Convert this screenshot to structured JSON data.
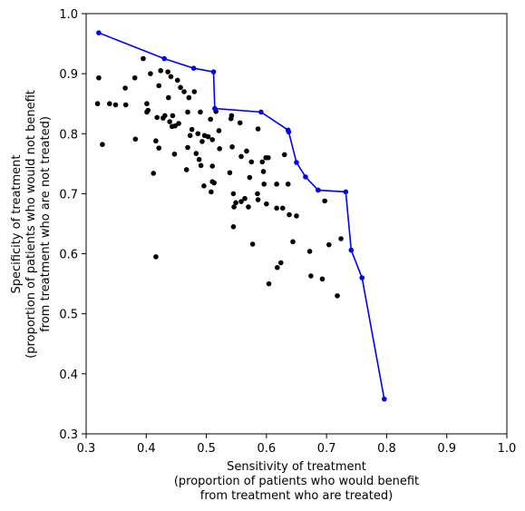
{
  "chart_data": {
    "type": "scatter",
    "title": "",
    "xlabel": [
      "Sensitivity of treatment",
      "(proportion of patients who would benefit",
      "from treatment who are treated)"
    ],
    "ylabel": [
      "Specificity of treatment",
      "(proportion of patients who would not benefit",
      "from treatment who are not treated)"
    ],
    "xlim": [
      0.3,
      1.0
    ],
    "ylim": [
      0.3,
      1.0
    ],
    "xticks": [
      "0.3",
      "0.4",
      "0.5",
      "0.6",
      "0.7",
      "0.8",
      "0.9",
      "1.0"
    ],
    "yticks": [
      "0.3",
      "0.4",
      "0.5",
      "0.6",
      "0.7",
      "0.8",
      "0.9",
      "1.0"
    ],
    "grid": false,
    "legend": "none",
    "series": [
      {
        "kind": "scatter",
        "color": "#000000",
        "points": [
          [
            0.321,
            0.893
          ],
          [
            0.319,
            0.85
          ],
          [
            0.327,
            0.782
          ],
          [
            0.339,
            0.85
          ],
          [
            0.349,
            0.848
          ],
          [
            0.365,
            0.876
          ],
          [
            0.366,
            0.848
          ],
          [
            0.381,
            0.893
          ],
          [
            0.382,
            0.791
          ],
          [
            0.395,
            0.925
          ],
          [
            0.401,
            0.85
          ],
          [
            0.401,
            0.836
          ],
          [
            0.403,
            0.839
          ],
          [
            0.407,
            0.9
          ],
          [
            0.412,
            0.734
          ],
          [
            0.416,
            0.788
          ],
          [
            0.418,
            0.827
          ],
          [
            0.416,
            0.595
          ],
          [
            0.421,
            0.88
          ],
          [
            0.421,
            0.776
          ],
          [
            0.424,
            0.905
          ],
          [
            0.428,
            0.826
          ],
          [
            0.431,
            0.83
          ],
          [
            0.436,
            0.903
          ],
          [
            0.437,
            0.86
          ],
          [
            0.439,
            0.82
          ],
          [
            0.441,
            0.895
          ],
          [
            0.444,
            0.83
          ],
          [
            0.443,
            0.812
          ],
          [
            0.447,
            0.766
          ],
          [
            0.448,
            0.813
          ],
          [
            0.452,
            0.889
          ],
          [
            0.454,
            0.817
          ],
          [
            0.457,
            0.877
          ],
          [
            0.463,
            0.87
          ],
          [
            0.467,
            0.74
          ],
          [
            0.469,
            0.777
          ],
          [
            0.469,
            0.836
          ],
          [
            0.471,
            0.86
          ],
          [
            0.473,
            0.797
          ],
          [
            0.476,
            0.807
          ],
          [
            0.48,
            0.87
          ],
          [
            0.483,
            0.767
          ],
          [
            0.486,
            0.8
          ],
          [
            0.488,
            0.757
          ],
          [
            0.49,
            0.836
          ],
          [
            0.491,
            0.747
          ],
          [
            0.493,
            0.787
          ],
          [
            0.496,
            0.713
          ],
          [
            0.497,
            0.797
          ],
          [
            0.503,
            0.795
          ],
          [
            0.507,
            0.824
          ],
          [
            0.508,
            0.703
          ],
          [
            0.51,
            0.746
          ],
          [
            0.51,
            0.72
          ],
          [
            0.51,
            0.79
          ],
          [
            0.513,
            0.718
          ],
          [
            0.516,
            0.837
          ],
          [
            0.521,
            0.805
          ],
          [
            0.522,
            0.775
          ],
          [
            0.539,
            0.735
          ],
          [
            0.541,
            0.825
          ],
          [
            0.542,
            0.83
          ],
          [
            0.543,
            0.778
          ],
          [
            0.545,
            0.7
          ],
          [
            0.545,
            0.645
          ],
          [
            0.546,
            0.678
          ],
          [
            0.549,
            0.685
          ],
          [
            0.556,
            0.818
          ],
          [
            0.558,
            0.687
          ],
          [
            0.558,
            0.762
          ],
          [
            0.564,
            0.692
          ],
          [
            0.567,
            0.771
          ],
          [
            0.57,
            0.678
          ],
          [
            0.572,
            0.727
          ],
          [
            0.575,
            0.753
          ],
          [
            0.577,
            0.616
          ],
          [
            0.585,
            0.7
          ],
          [
            0.586,
            0.69
          ],
          [
            0.586,
            0.808
          ],
          [
            0.593,
            0.753
          ],
          [
            0.595,
            0.737
          ],
          [
            0.596,
            0.716
          ],
          [
            0.599,
            0.76
          ],
          [
            0.6,
            0.683
          ],
          [
            0.603,
            0.76
          ],
          [
            0.604,
            0.55
          ],
          [
            0.617,
            0.716
          ],
          [
            0.617,
            0.676
          ],
          [
            0.618,
            0.577
          ],
          [
            0.624,
            0.585
          ],
          [
            0.627,
            0.676
          ],
          [
            0.63,
            0.765
          ],
          [
            0.636,
            0.716
          ],
          [
            0.638,
            0.665
          ],
          [
            0.644,
            0.62
          ],
          [
            0.65,
            0.663
          ],
          [
            0.672,
            0.604
          ],
          [
            0.674,
            0.563
          ],
          [
            0.693,
            0.558
          ],
          [
            0.697,
            0.688
          ],
          [
            0.704,
            0.615
          ],
          [
            0.718,
            0.53
          ],
          [
            0.724,
            0.625
          ]
        ]
      },
      {
        "kind": "line",
        "color": "#0000ff",
        "points": [
          [
            0.321,
            0.968
          ],
          [
            0.43,
            0.925
          ],
          [
            0.479,
            0.909
          ],
          [
            0.512,
            0.903
          ],
          [
            0.514,
            0.842
          ],
          [
            0.591,
            0.836
          ],
          [
            0.636,
            0.806
          ],
          [
            0.637,
            0.803
          ],
          [
            0.65,
            0.752
          ],
          [
            0.665,
            0.728
          ],
          [
            0.686,
            0.706
          ],
          [
            0.732,
            0.703
          ],
          [
            0.741,
            0.606
          ],
          [
            0.759,
            0.56
          ],
          [
            0.796,
            0.358
          ]
        ]
      }
    ]
  }
}
